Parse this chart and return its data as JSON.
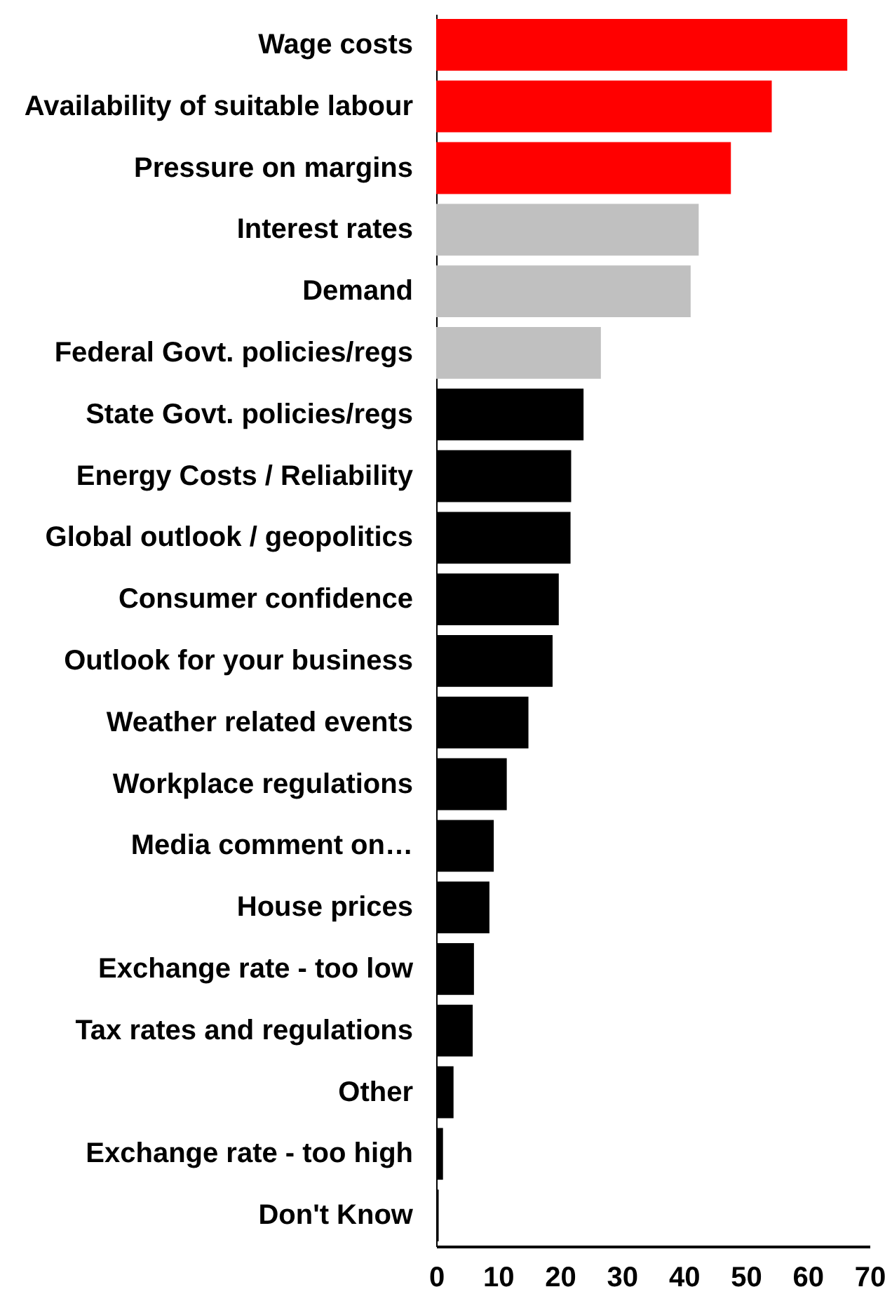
{
  "chart_data": {
    "type": "bar",
    "orientation": "horizontal",
    "categories": [
      "Wage costs",
      "Availability of suitable labour",
      "Pressure on margins",
      "Interest rates",
      "Demand",
      "Federal Govt. policies/regs",
      "State Govt. policies/regs",
      "Energy Costs / Reliability",
      "Global outlook / geopolitics",
      "Consumer confidence",
      "Outlook for your business",
      "Weather related events",
      "Workplace regulations",
      "Media comment on…",
      "House prices",
      "Exchange rate - too low",
      "Tax rates and regulations",
      "Other",
      "Exchange rate - too high",
      "Don't Know"
    ],
    "values": [
      66.4,
      54.2,
      47.6,
      42.4,
      41.1,
      26.6,
      23.8,
      21.8,
      21.7,
      19.8,
      18.8,
      14.9,
      11.4,
      9.3,
      8.6,
      6.1,
      5.9,
      2.8,
      1.1,
      0.4
    ],
    "colors": [
      "#ff0000",
      "#ff0000",
      "#ff0000",
      "#c0c0c0",
      "#c0c0c0",
      "#c0c0c0",
      "#000000",
      "#000000",
      "#000000",
      "#000000",
      "#000000",
      "#000000",
      "#000000",
      "#000000",
      "#000000",
      "#000000",
      "#000000",
      "#000000",
      "#000000",
      "#000000"
    ],
    "xlim": [
      0,
      70
    ],
    "xticks": [
      0,
      10,
      20,
      30,
      40,
      50,
      60,
      70
    ],
    "grid": false
  }
}
